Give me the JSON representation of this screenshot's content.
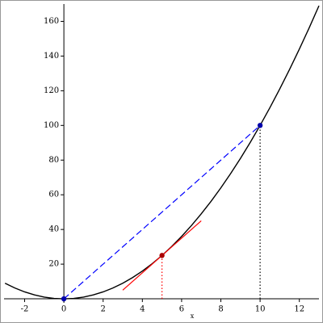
{
  "chart_data": {
    "type": "line",
    "xlabel": "x",
    "xlim": [
      -3.05,
      13
    ],
    "ylim": [
      -2.3,
      170
    ],
    "xticks": [
      -2,
      0,
      2,
      4,
      6,
      8,
      10,
      12
    ],
    "yticks": [
      20,
      40,
      60,
      80,
      100,
      120,
      140,
      160
    ],
    "series": [
      {
        "color": "#000000",
        "style": "solid",
        "x": [
          -3,
          -2.5,
          -2,
          -1.5,
          -1,
          -0.5,
          0,
          0.5,
          1,
          1.5,
          2,
          2.5,
          3,
          3.5,
          4,
          4.5,
          5,
          5.5,
          6,
          6.5,
          7,
          7.5,
          8,
          8.5,
          9,
          9.5,
          10,
          10.5,
          11,
          11.5,
          12,
          12.5,
          13
        ],
        "values": [
          9,
          6.25,
          4,
          2.25,
          1,
          0.25,
          0,
          0.25,
          1,
          2.25,
          4,
          6.25,
          9,
          12.25,
          16,
          20.25,
          25,
          30.25,
          36,
          42.25,
          49,
          56.25,
          64,
          72.25,
          81,
          90.25,
          100,
          110.25,
          121,
          132.25,
          144,
          156.25,
          169
        ]
      },
      {
        "color": "#0000ff",
        "style": "dashed",
        "x": [
          0,
          10
        ],
        "values": [
          0,
          100
        ]
      },
      {
        "color": "#ff0000",
        "style": "solid",
        "x": [
          3,
          7
        ],
        "values": [
          5,
          45
        ]
      },
      {
        "color": "#ff0000",
        "style": "dotted",
        "x": [
          5,
          5
        ],
        "values": [
          0,
          25
        ]
      },
      {
        "color": "#000000",
        "style": "dotted",
        "x": [
          10,
          10
        ],
        "values": [
          0,
          100
        ]
      },
      {
        "color": "#0000aa",
        "style": "point",
        "x": [
          0,
          10
        ],
        "values": [
          0,
          100
        ]
      },
      {
        "color": "#aa0000",
        "style": "point",
        "x": [
          5
        ],
        "values": [
          25
        ]
      }
    ]
  }
}
